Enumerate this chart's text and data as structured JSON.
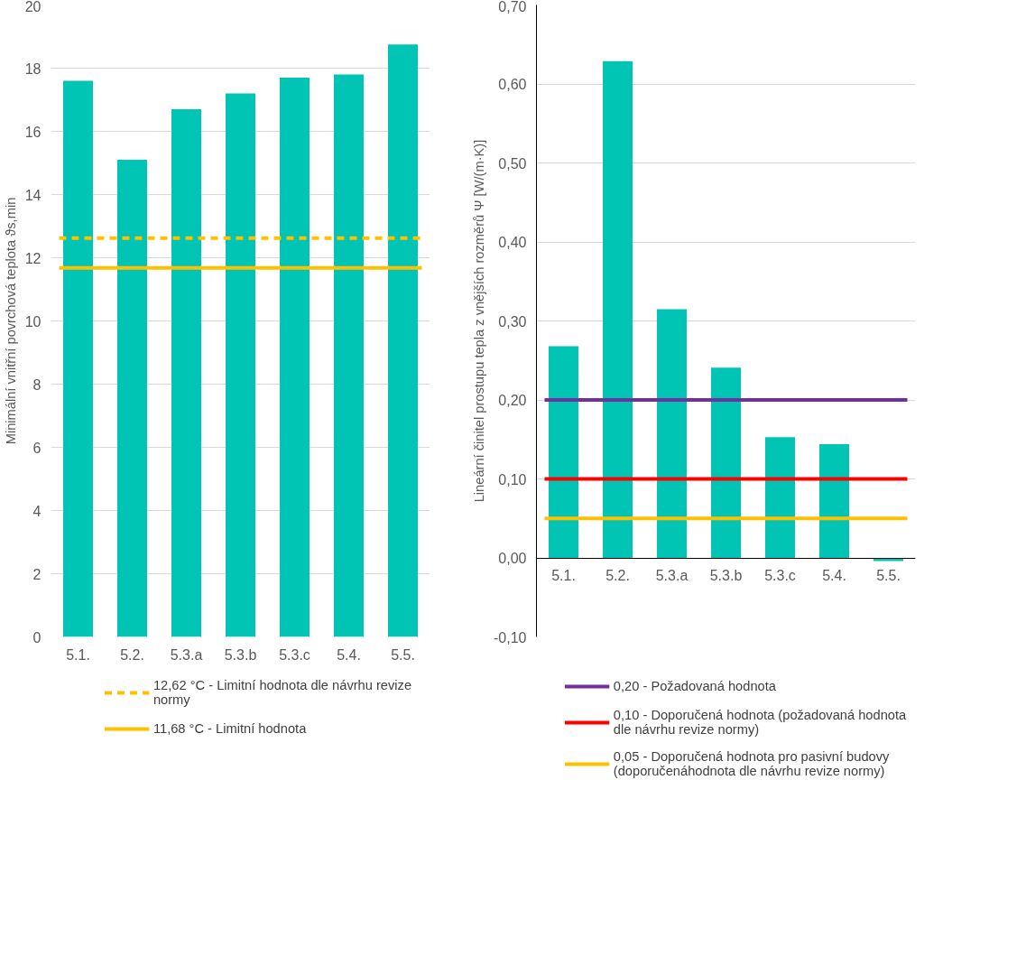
{
  "chart_data": [
    {
      "type": "bar",
      "ylabel": "Minimální vnitřní povrchová teplota ϑs,min",
      "categories": [
        "5.1.",
        "5.2.",
        "5.3.a",
        "5.3.b",
        "5.3.c",
        "5.4.",
        "5.5."
      ],
      "series": [
        {
          "color": "#00c4b4",
          "values": [
            17.6,
            15.1,
            16.7,
            17.2,
            17.7,
            17.8,
            18.75
          ]
        }
      ],
      "ylim": [
        0,
        20
      ],
      "yticks": [
        0,
        2,
        4,
        6,
        8,
        10,
        12,
        14,
        16,
        18,
        20
      ],
      "grid": "y",
      "legend": "bottom",
      "ref_lines": [
        {
          "axis": "y",
          "value": 12.62,
          "label": "12,62 °C - Limitní hodnota dle návrhu revize normy",
          "color": "#ffc000",
          "line_style": "dashed"
        },
        {
          "axis": "y",
          "value": 11.68,
          "label": "11,68 °C - Limitní hodnota",
          "color": "#ffc000",
          "line_style": "solid"
        }
      ]
    },
    {
      "type": "bar",
      "ylabel": "Lineární činitel prostupu tepla z vnějších rozměrů Ψ [W/(m·K)]",
      "categories": [
        "5.1.",
        "5.2.",
        "5.3.a",
        "5.3.b",
        "5.3.c",
        "5.4.",
        "5.5."
      ],
      "series": [
        {
          "color": "#00c4b4",
          "values": [
            0.268,
            0.629,
            0.315,
            0.241,
            0.153,
            0.144,
            -0.004
          ]
        }
      ],
      "ylim": [
        -0.1,
        0.7
      ],
      "yticks": [
        {
          "value": -0.1,
          "label": "-0,10"
        },
        {
          "value": 0,
          "label": "0,00"
        },
        {
          "value": 0.1,
          "label": "0,10"
        },
        {
          "value": 0.2,
          "label": "0,20"
        },
        {
          "value": 0.3,
          "label": "0,30"
        },
        {
          "value": 0.4,
          "label": "0,40"
        },
        {
          "value": 0.5,
          "label": "0,50"
        },
        {
          "value": 0.6,
          "label": "0,60"
        },
        {
          "value": 0.7,
          "label": "0,70"
        }
      ],
      "grid": "y",
      "legend": "bottom",
      "ref_lines": [
        {
          "axis": "y",
          "value": 0.2,
          "label": "0,20 - Požadovaná hodnota",
          "color": "#7030a0",
          "line_style": "solid"
        },
        {
          "axis": "y",
          "value": 0.1,
          "label": "0,10 - Doporučená hodnota (požadovaná hodnota dle návrhu revize normy)",
          "color": "#ff0000",
          "line_style": "solid"
        },
        {
          "axis": "y",
          "value": 0.05,
          "label": "0,05 - Doporučená hodnota pro pasivní budovy (doporučenáhodnota dle návrhu revize normy)",
          "color": "#ffc000",
          "line_style": "solid"
        }
      ]
    }
  ]
}
